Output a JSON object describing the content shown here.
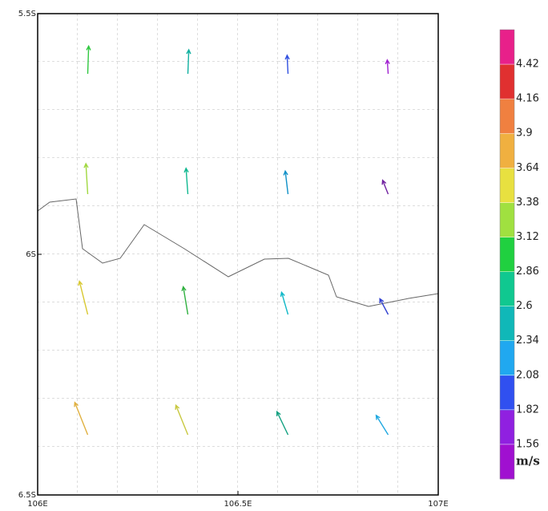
{
  "chart_data": {
    "type": "quiver",
    "xlim": [
      106,
      107
    ],
    "ylim": [
      -6.5,
      -5.5
    ],
    "xticks": [
      {
        "value": 106,
        "label": "106E"
      },
      {
        "value": 106.5,
        "label": "106.5E"
      },
      {
        "value": 107,
        "label": "107E"
      }
    ],
    "yticks": [
      {
        "value": -5.5,
        "label": "5.5S"
      },
      {
        "value": -6,
        "label": "6S"
      },
      {
        "value": -6.5,
        "label": "6.5S"
      }
    ],
    "vectors": [
      {
        "lon": 106.125,
        "lat": -5.625,
        "u": 0.1,
        "v": 3.0,
        "color": "#30c840"
      },
      {
        "lon": 106.375,
        "lat": -5.625,
        "u": 0.1,
        "v": 2.6,
        "color": "#10b0a0"
      },
      {
        "lon": 106.625,
        "lat": -5.625,
        "u": -0.1,
        "v": 2.0,
        "color": "#3050e0"
      },
      {
        "lon": 106.875,
        "lat": -5.625,
        "u": -0.1,
        "v": 1.5,
        "color": "#a020d0"
      },
      {
        "lon": 106.125,
        "lat": -5.875,
        "u": -0.2,
        "v": 3.3,
        "color": "#a0d840"
      },
      {
        "lon": 106.375,
        "lat": -5.875,
        "u": -0.2,
        "v": 2.8,
        "color": "#10b890"
      },
      {
        "lon": 106.625,
        "lat": -5.875,
        "u": -0.3,
        "v": 2.5,
        "color": "#1090c8"
      },
      {
        "lon": 106.875,
        "lat": -5.875,
        "u": -0.6,
        "v": 1.5,
        "color": "#7020a0"
      },
      {
        "lon": 106.125,
        "lat": -6.125,
        "u": -0.9,
        "v": 3.6,
        "color": "#d8c830"
      },
      {
        "lon": 106.375,
        "lat": -6.125,
        "u": -0.5,
        "v": 3.0,
        "color": "#30b040"
      },
      {
        "lon": 106.625,
        "lat": -6.125,
        "u": -0.7,
        "v": 2.4,
        "color": "#10b8c8"
      },
      {
        "lon": 106.875,
        "lat": -6.125,
        "u": -0.9,
        "v": 1.7,
        "color": "#3040d0"
      },
      {
        "lon": 106.125,
        "lat": -6.375,
        "u": -1.4,
        "v": 3.5,
        "color": "#e0b040"
      },
      {
        "lon": 106.375,
        "lat": -6.375,
        "u": -1.3,
        "v": 3.2,
        "color": "#c8c840"
      },
      {
        "lon": 106.625,
        "lat": -6.375,
        "u": -1.2,
        "v": 2.5,
        "color": "#10a080"
      },
      {
        "lon": 106.875,
        "lat": -6.375,
        "u": -1.3,
        "v": 2.1,
        "color": "#20a8e0"
      }
    ],
    "colorbar": {
      "unit": "m/s",
      "levels": [
        1.56,
        1.82,
        2.08,
        2.34,
        2.6,
        2.86,
        3.12,
        3.38,
        3.64,
        3.9,
        4.16,
        4.42
      ],
      "colors": [
        "#a010d0",
        "#9020e0",
        "#3050f0",
        "#20a8f0",
        "#10b8b8",
        "#10c890",
        "#20d040",
        "#a0e040",
        "#e8e040",
        "#f0b040",
        "#f08040",
        "#e03030",
        "#e8208a"
      ]
    }
  }
}
